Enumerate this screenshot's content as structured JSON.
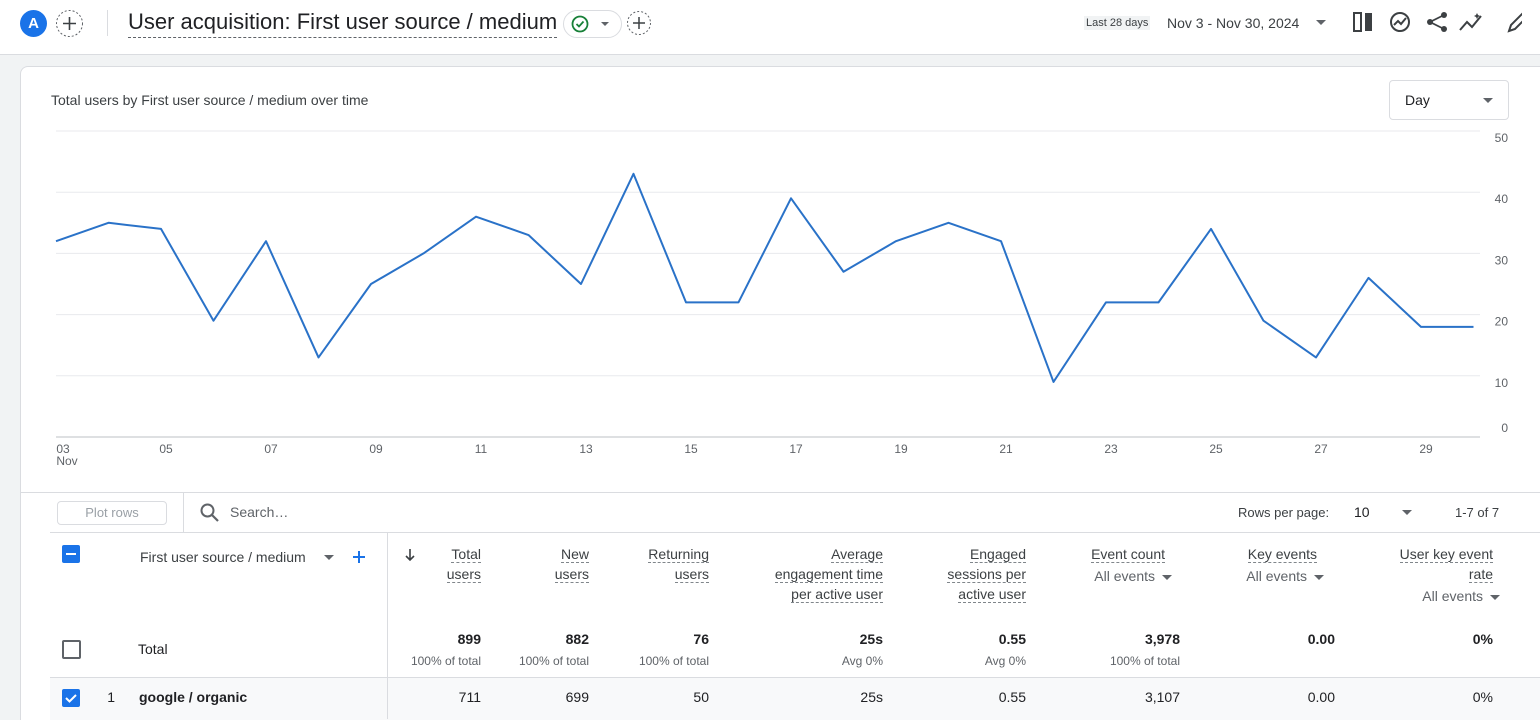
{
  "header": {
    "avatar": "A",
    "title": "User acquisition: First user source / medium",
    "date_range_label": "Last 28 days",
    "date_range": "Nov 3 - Nov 30, 2024"
  },
  "controls": {
    "granularity": "Day"
  },
  "chart_data": {
    "type": "line",
    "title": "Total users by First user source / medium over time",
    "categories": [
      "03",
      null,
      "05",
      null,
      "07",
      null,
      "09",
      null,
      "11",
      null,
      "13",
      null,
      "15",
      null,
      "17",
      null,
      "19",
      null,
      "21",
      null,
      "23",
      null,
      "25",
      null,
      "27",
      null,
      "29",
      null
    ],
    "x_sublabel": "Nov",
    "values": [
      32,
      35,
      34,
      19,
      32,
      13,
      25,
      30,
      36,
      33,
      25,
      43,
      22,
      22,
      39,
      27,
      32,
      35,
      32,
      9,
      22,
      22,
      34,
      19,
      13,
      26,
      18,
      18
    ],
    "color": "#2a72c8",
    "ylim": [
      0,
      50
    ],
    "yticks": [
      0,
      10,
      20,
      30,
      40,
      50
    ],
    "grid": true
  },
  "table": {
    "plot_rows": "Plot rows",
    "search_placeholder": "Search…",
    "rows_per_page_label": "Rows per page:",
    "rows_per_page": "10",
    "pagination": "1-7 of 7",
    "dimension": "First user source / medium",
    "columns": [
      {
        "name": "Total users"
      },
      {
        "name": "New users"
      },
      {
        "name": "Returning users"
      },
      {
        "name": "Average engagement time per active user"
      },
      {
        "name": "Engaged sessions per active user"
      },
      {
        "name": "Event count",
        "filter": "All events"
      },
      {
        "name": "Key events",
        "filter": "All events"
      },
      {
        "name": "User key event rate",
        "filter": "All events"
      }
    ],
    "totals": {
      "label": "Total",
      "cells": [
        {
          "value": "899",
          "note": "100% of total"
        },
        {
          "value": "882",
          "note": "100% of total"
        },
        {
          "value": "76",
          "note": "100% of total"
        },
        {
          "value": "25s",
          "note": "Avg 0%"
        },
        {
          "value": "0.55",
          "note": "Avg 0%"
        },
        {
          "value": "3,978",
          "note": "100% of total"
        },
        {
          "value": "0.00"
        },
        {
          "value": "0%"
        }
      ]
    },
    "rows": [
      {
        "index": "1",
        "name": "google / organic",
        "values": [
          "711",
          "699",
          "50",
          "25s",
          "0.55",
          "3,107",
          "0.00",
          "0%"
        ]
      }
    ]
  }
}
